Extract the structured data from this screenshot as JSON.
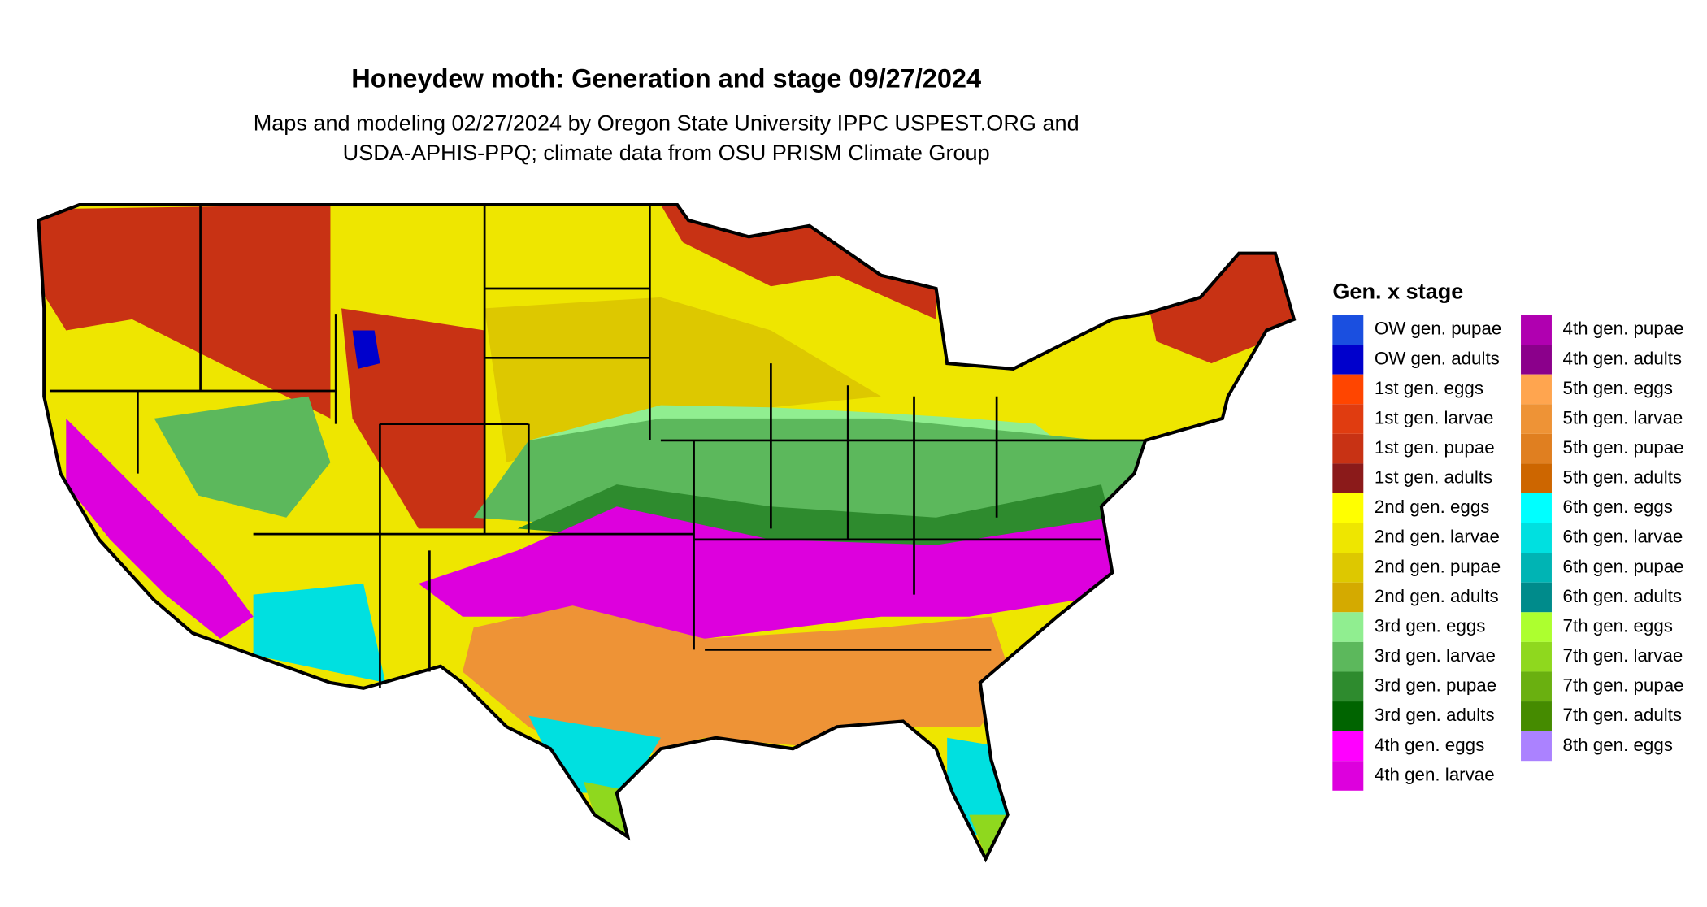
{
  "title": "Honeydew moth: Generation and stage 09/27/2024",
  "subtitle": [
    "Maps and modeling 02/27/2024 by Oregon State University IPPC USPEST.ORG and",
    "USDA-APHIS-PPQ; climate data from OSU PRISM Climate Group"
  ],
  "legend": {
    "title": "Gen. x stage",
    "items": [
      {
        "label": "OW gen. pupae",
        "color": "#1a4fe0"
      },
      {
        "label": "OW gen. adults",
        "color": "#0000cc"
      },
      {
        "label": "1st gen. eggs",
        "color": "#ff4500"
      },
      {
        "label": "1st gen. larvae",
        "color": "#e03c10"
      },
      {
        "label": "1st gen. pupae",
        "color": "#c83214"
      },
      {
        "label": "1st gen. adults",
        "color": "#8b1a1a"
      },
      {
        "label": "2nd gen. eggs",
        "color": "#ffff00"
      },
      {
        "label": "2nd gen. larvae",
        "color": "#eee600"
      },
      {
        "label": "2nd gen. pupae",
        "color": "#ddc800"
      },
      {
        "label": "2nd gen. adults",
        "color": "#d4aa00"
      },
      {
        "label": "3rd gen. eggs",
        "color": "#90ee90"
      },
      {
        "label": "3rd gen. larvae",
        "color": "#5cb85c"
      },
      {
        "label": "3rd gen. pupae",
        "color": "#2e8b2e"
      },
      {
        "label": "3rd gen. adults",
        "color": "#006400"
      },
      {
        "label": "4th gen. eggs",
        "color": "#ff00ff"
      },
      {
        "label": "4th gen. larvae",
        "color": "#dd00dd"
      },
      {
        "label": "4th gen. pupae",
        "color": "#b000b0"
      },
      {
        "label": "4th gen. adults",
        "color": "#8b008b"
      },
      {
        "label": "5th gen. eggs",
        "color": "#ffa54f"
      },
      {
        "label": "5th gen. larvae",
        "color": "#ee9336"
      },
      {
        "label": "5th gen. pupae",
        "color": "#e07f20"
      },
      {
        "label": "5th gen. adults",
        "color": "#cd6600"
      },
      {
        "label": "6th gen. eggs",
        "color": "#00ffff"
      },
      {
        "label": "6th gen. larvae",
        "color": "#00e0e0"
      },
      {
        "label": "6th gen. pupae",
        "color": "#00b4b4"
      },
      {
        "label": "6th gen. adults",
        "color": "#008b8b"
      },
      {
        "label": "7th gen. eggs",
        "color": "#adff2f"
      },
      {
        "label": "7th gen. larvae",
        "color": "#8fd81e"
      },
      {
        "label": "7th gen. pupae",
        "color": "#6ab010"
      },
      {
        "label": "7th gen. adults",
        "color": "#458b00"
      },
      {
        "label": "8th gen. eggs",
        "color": "#ab82ff"
      }
    ]
  }
}
